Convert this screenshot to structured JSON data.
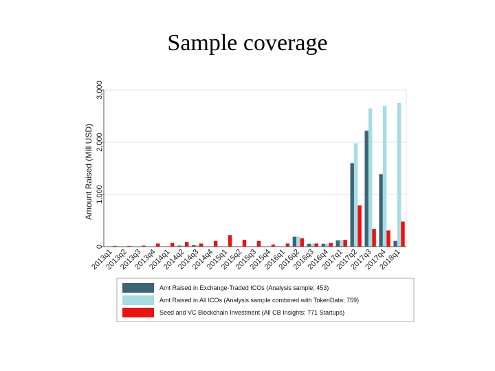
{
  "slide": {
    "title": "Sample coverage"
  },
  "chart_data": {
    "type": "bar",
    "title": "",
    "xlabel": "",
    "ylabel": "Amount Raised (Mill USD)",
    "ylim": [
      0,
      3000
    ],
    "yticks": [
      0,
      1000,
      2000,
      3000
    ],
    "ytick_labels": [
      "0",
      "1,000",
      "2,000",
      "3,000"
    ],
    "grid": true,
    "legend_position": "bottom",
    "categories": [
      "2013q1",
      "2013q2",
      "2013q3",
      "2013q4",
      "2014q1",
      "2014q2",
      "2014q3",
      "2014q4",
      "2015q1",
      "2015q2",
      "2015q3",
      "2015q4",
      "2016q1",
      "2016q2",
      "2016q3",
      "2016q4",
      "2017q1",
      "2017q2",
      "2017q3",
      "2017q4",
      "2018q1"
    ],
    "series": [
      {
        "name": "Amt Raised in Exchange-Traded ICOs (Analysis sample; 453)",
        "color": "#3b6577",
        "values": [
          0,
          0,
          0,
          5,
          0,
          20,
          30,
          0,
          0,
          0,
          5,
          0,
          0,
          190,
          55,
          55,
          120,
          1600,
          2220,
          1390,
          110
        ]
      },
      {
        "name": "Amt Raised in All ICOs (Analysis sample combined with TokenData; 759)",
        "color": "#a7dce3",
        "values": [
          0,
          0,
          0,
          5,
          0,
          20,
          30,
          0,
          0,
          0,
          5,
          0,
          0,
          190,
          60,
          60,
          130,
          1980,
          2650,
          2700,
          2750
        ]
      },
      {
        "name": "Seed and VC Blockchain Investment (All CB Insights; 771 Startups)",
        "color": "#ee1111",
        "values": [
          15,
          15,
          20,
          60,
          70,
          90,
          60,
          110,
          220,
          130,
          110,
          40,
          60,
          160,
          60,
          70,
          130,
          790,
          340,
          310,
          480
        ]
      }
    ]
  }
}
